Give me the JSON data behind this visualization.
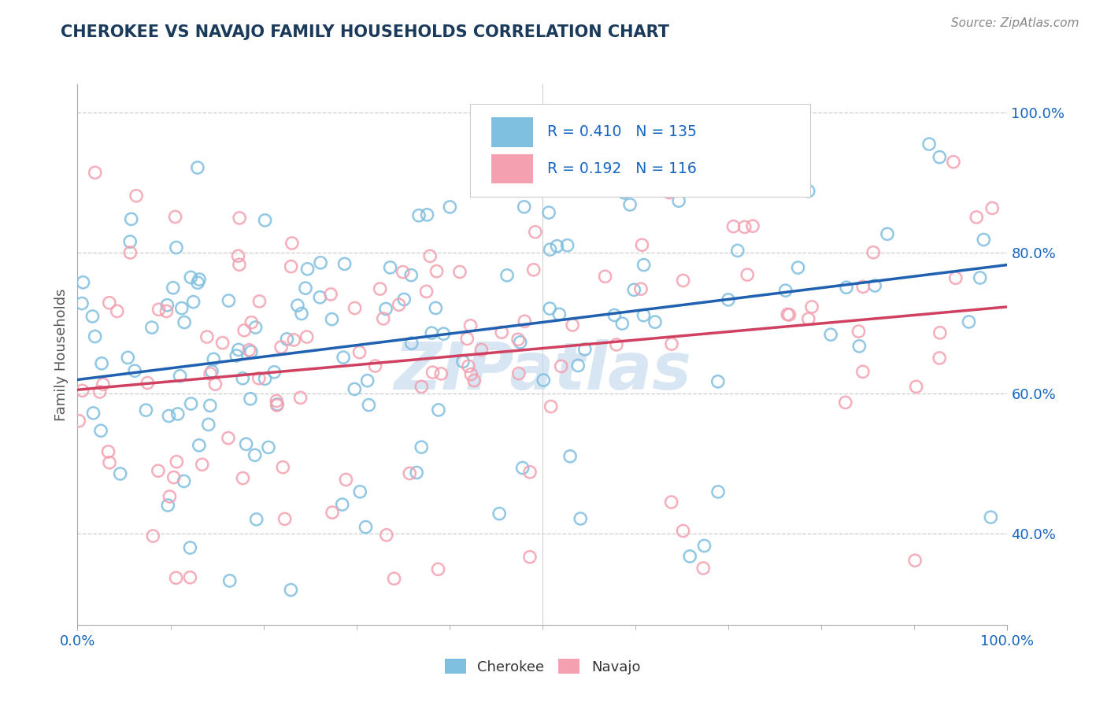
{
  "title": "CHEROKEE VS NAVAJO FAMILY HOUSEHOLDS CORRELATION CHART",
  "source_text": "Source: ZipAtlas.com",
  "ylabel": "Family Households",
  "cherokee_R": 0.41,
  "cherokee_N": 135,
  "navajo_R": 0.192,
  "navajo_N": 116,
  "cherokee_color": "#7fbfdf",
  "navajo_color": "#f4a0b0",
  "cherokee_line_color": "#2060b0",
  "navajo_line_color": "#d04060",
  "legend_R_color": "#1565c0",
  "legend_N_color": "#1565c0",
  "background_color": "#ffffff",
  "watermark_text": "ZIPatlas",
  "watermark_color": "#c8dcf0",
  "grid_color": "#cccccc",
  "title_color": "#1a3a5c",
  "tick_label_color": "#1565c0",
  "ylabel_color": "#555555",
  "source_color": "#888888",
  "ylim_min": 0.27,
  "ylim_max": 1.04,
  "xlim_min": 0.0,
  "xlim_max": 1.0,
  "yticks": [
    0.4,
    0.6,
    0.8,
    1.0
  ],
  "ytick_labels": [
    "40.0%",
    "60.0%",
    "80.0%",
    "100.0%"
  ]
}
